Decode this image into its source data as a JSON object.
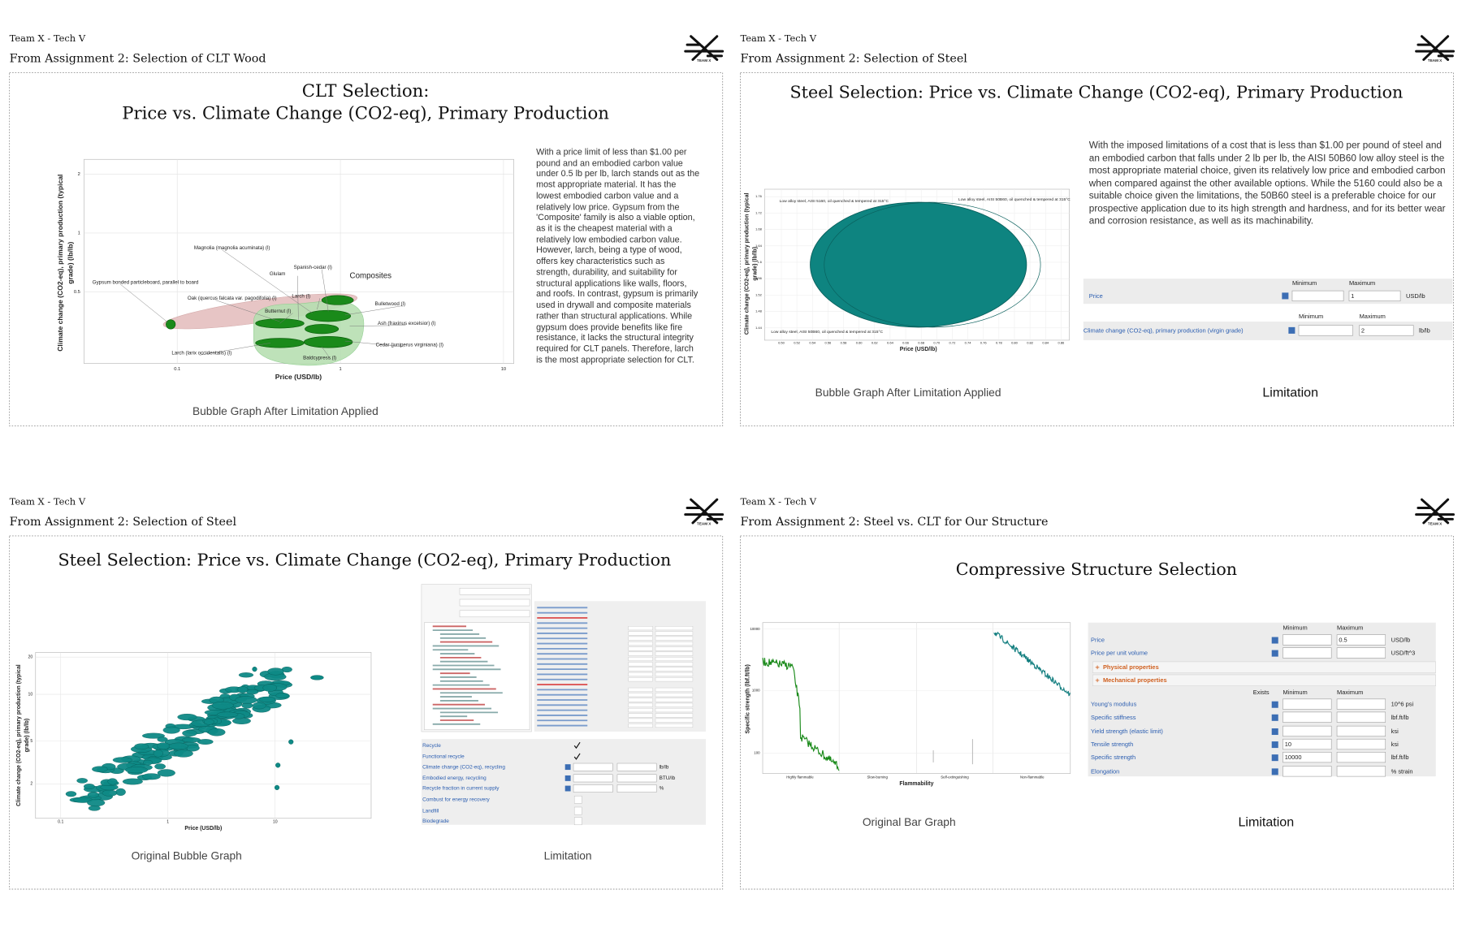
{
  "slides": [
    {
      "team": "Team X - Tech V",
      "heading": "From Assignment 2: Selection of CLT Wood",
      "logo": "TEAM X",
      "title": [
        "CLT Selection:",
        "Price vs. Climate Change (CO2-eq), Primary Production"
      ],
      "body": "With a price limit of less than $1.00 per pound and an embodied carbon value under 0.5 lb per lb, larch stands out as the most appropriate material. It has the lowest embodied carbon value and a relatively low price. Gypsum from the 'Composite' family is also a viable option, as it is the cheapest material with a relatively low embodied carbon value. However, larch, being a type of wood, offers key characteristics such as strength, durability, and suitability for structural applications like walls, floors, and roofs. In contrast, gypsum is primarily used in drywall and composite materials rather than structural applications. While gypsum does provide benefits like fire resistance, it lacks the structural integrity required for CLT panels. Therefore, larch is the most appropriate selection for CLT.",
      "chart": {
        "xlabel": "Price (USD/lb)",
        "ylabel": [
          "Climate change (CO2-eq), primary production (typical",
          "grade) (lb/lb)"
        ],
        "xticks": [
          "0.1",
          "1",
          "10"
        ],
        "yticks": [
          "2",
          "1",
          "0.5"
        ],
        "labels": [
          "Magnolia (magnolia acuminata) (l)",
          "Spanish-cedar (l)",
          "Glulam",
          "Composites",
          "Gypsum bonded particleboard, parallel to board",
          "Oak (quercus falcata var. pagodifolia) (l)",
          "Larch (l)",
          "Butternut (l)",
          "Bulletwood (l)",
          "Ash (fraxinus excelsior) (l)",
          "Cedar (juniperus virginiana) (l)",
          "Baldcypress (l)",
          "Larch (larix occidentalis) (l)"
        ]
      },
      "caption": "Bubble Graph After Limitation Applied"
    },
    {
      "team": "Team X - Tech V",
      "heading": "From Assignment 2: Selection of Steel",
      "logo": "TEAM X",
      "title": "Steel Selection: Price vs. Climate Change (CO2-eq), Primary Production",
      "body": "With the imposed limitations of a cost that is less than $1.00 per pound of steel and an embodied carbon that falls under 2 lb per lb, the AISI 50B60 low alloy steel is the most appropriate material choice, given its relatively low price and embodied carbon when compared against the other available options. While the 5160 could also be a suitable choice given the limitations, the 50B60 steel is a preferable choice for our prospective application due to its high strength and hardness, and for its better wear and corrosion resistance, as well as its machinability.",
      "chart": {
        "xlabel": "Price (USD/lb)",
        "ylabel": [
          "Climate change (CO2-eq), primary production (typical",
          "grade) (lb/lb)"
        ],
        "xticks": [
          "0.50",
          "0.52",
          "0.54",
          "0.56",
          "0.58",
          "0.60",
          "0.62",
          "0.64",
          "0.66",
          "0.68",
          "0.70",
          "0.72",
          "0.74",
          "0.76",
          "0.78",
          "0.80",
          "0.82",
          "0.84",
          "0.86"
        ],
        "yticks": [
          "1.76",
          "1.72",
          "1.68",
          "1.64",
          "1.6",
          "1.56",
          "1.52",
          "1.48",
          "1.44"
        ],
        "labels": [
          "Low alloy steel, AISI 5160, oil quenched & tempered at 315°C",
          "Low alloy steel, AISI 50B60, oil quenched & tempered at 315°C",
          "Low alloy steel, AISI 50B60, oil quenched & tempered at 315°C"
        ]
      },
      "limitation": {
        "rows": [
          {
            "headers": [
              "Minimum",
              "Maximum"
            ],
            "name": "Price",
            "max": "1",
            "unit": "USD/lb"
          },
          {
            "headers": [
              "Minimum",
              "Maximum"
            ],
            "name": "Climate change (CO2-eq), primary production (virgin grade)",
            "max": "2",
            "unit": "lb/lb"
          }
        ]
      },
      "captions": [
        "Bubble Graph After Limitation Applied",
        "Limitation"
      ]
    },
    {
      "team": "Team X - Tech V",
      "heading": "From Assignment 2: Selection of Steel",
      "logo": "TEAM X",
      "title": "Steel Selection: Price vs. Climate Change (CO2-eq), Primary Production",
      "chart": {
        "xlabel": "Price (USD/lb)",
        "ylabel": [
          "Climate change (CO2-eq), primary production (typical",
          "grade) (lb/lb)"
        ],
        "xticks": [
          "0.1",
          "1",
          "10"
        ],
        "yticks": [
          "20",
          "10",
          "5",
          "2"
        ]
      },
      "limitation": {
        "rows": [
          {
            "name": "Recycle"
          },
          {
            "name": "Functional recycle"
          },
          {
            "name": "Climate change (CO2-eq), recycling",
            "unit": "lb/lb"
          },
          {
            "name": "Embodied energy, recycling",
            "unit": "BTU/lb"
          },
          {
            "name": "Recycle fraction in current supply",
            "unit": "%"
          },
          {
            "name": "Combust for energy recovery"
          },
          {
            "name": "Landfill"
          },
          {
            "name": "Biodegrade"
          }
        ]
      },
      "captions": [
        "Original Bubble Graph",
        "Limitation"
      ]
    },
    {
      "team": "Team X - Tech V",
      "heading": "From Assignment 2: Steel vs. CLT for Our Structure",
      "logo": "TEAM X",
      "title": "Compressive Structure Selection",
      "chart": {
        "xlabel": "Flammability",
        "ylabel": "Specific strength (lbf.ft/lb)",
        "categories": [
          "Highly flammable",
          "Slow-burning",
          "Self-extinguishing",
          "Non-flammable"
        ],
        "yticks": [
          "10000",
          "1000",
          "100"
        ]
      },
      "limitation": {
        "headers": [
          "Minimum",
          "Maximum"
        ],
        "rows": [
          {
            "name": "Price",
            "max": "0.5",
            "unit": "USD/lb"
          },
          {
            "name": "Price per unit volume",
            "unit": "USD/ft^3"
          }
        ],
        "sections": [
          "Physical properties",
          "Mechanical properties"
        ],
        "headers2": [
          "Exists",
          "Minimum",
          "Maximum"
        ],
        "rows2": [
          {
            "name": "Young's modulus",
            "unit": "10^6 psi"
          },
          {
            "name": "Specific stiffness",
            "unit": "lbf.ft/lb"
          },
          {
            "name": "Yield strength (elastic limit)",
            "unit": "ksi"
          },
          {
            "name": "Tensile strength",
            "min": "10",
            "unit": "ksi"
          },
          {
            "name": "Specific strength",
            "min": "10000",
            "unit": "lbf.ft/lb"
          },
          {
            "name": "Elongation",
            "unit": "% strain"
          }
        ]
      },
      "captions": [
        "Original Bar Graph",
        "Limitation"
      ]
    }
  ]
}
